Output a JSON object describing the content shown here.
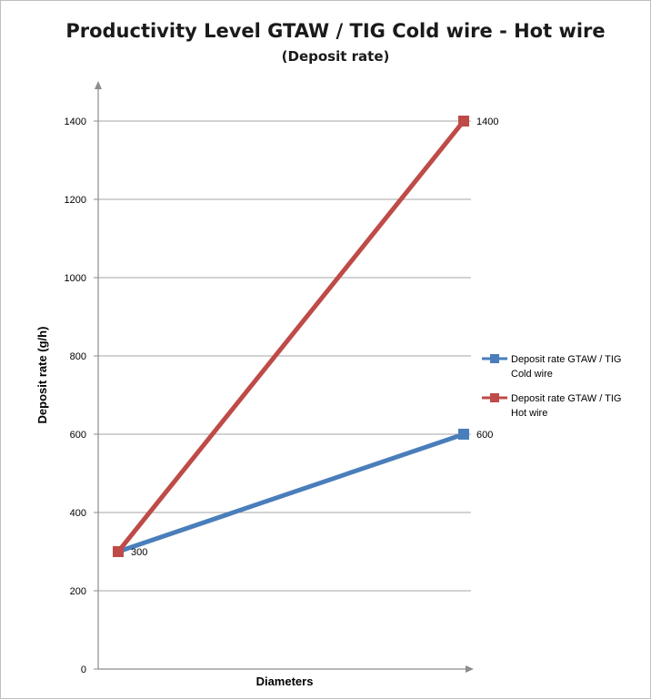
{
  "chart_data": {
    "type": "line",
    "title": "Productivity Level GTAW / TIG Cold wire - Hot wire",
    "subtitle": "(Deposit rate)",
    "xlabel": "Diameters",
    "ylabel": "Deposit rate (g/h)",
    "ylim": [
      0,
      1400
    ],
    "yticks": [
      0,
      200,
      400,
      600,
      800,
      1000,
      1200,
      1400
    ],
    "x": [
      1,
      2
    ],
    "grid": true,
    "legend_position": "right",
    "series": [
      {
        "name": "Deposit rate GTAW / TIG Cold wire",
        "legend_lines": [
          "Deposit rate GTAW / TIG",
          "Cold wire"
        ],
        "values": [
          300,
          600
        ],
        "labels": [
          "300",
          "600"
        ],
        "color": "#4a7ebb"
      },
      {
        "name": "Deposit rate GTAW / TIG Hot wire",
        "legend_lines": [
          "Deposit rate GTAW / TIG",
          "Hot wire"
        ],
        "values": [
          300,
          1400
        ],
        "labels": [
          "",
          "1400"
        ],
        "color": "#be4b48"
      }
    ]
  }
}
